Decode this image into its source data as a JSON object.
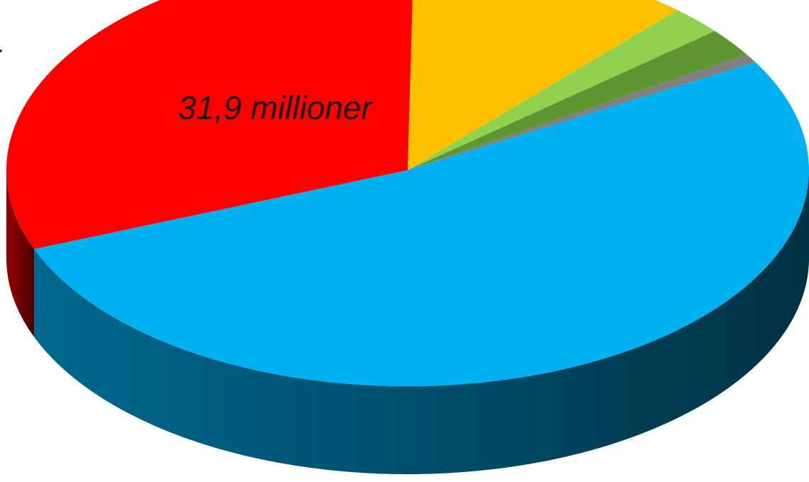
{
  "chart_data": {
    "type": "pie",
    "style": "3d",
    "slices": [
      {
        "name": "",
        "value": 31.9,
        "color": "#00B0F0",
        "label": "31,9 millioner"
      },
      {
        "name": "",
        "value": 19.0,
        "color": "#FF0000",
        "label": ""
      },
      {
        "name": "",
        "value": 7.0,
        "color": "#FFC000",
        "label": ""
      },
      {
        "name": "",
        "value": 1.3,
        "color": "#92D050",
        "label": ""
      },
      {
        "name": "",
        "value": 1.3,
        "color": "#5E9632",
        "label": ""
      },
      {
        "name": "",
        "value": 0.4,
        "color": "#808080",
        "label": ""
      }
    ],
    "partial_labels": [
      "r"
    ]
  }
}
